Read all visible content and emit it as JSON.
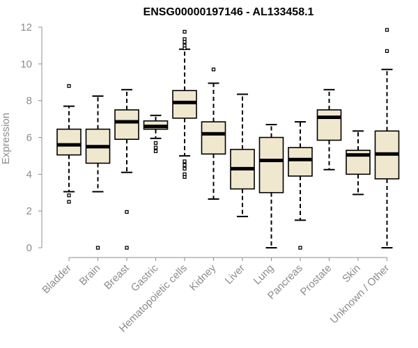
{
  "chart_data": {
    "type": "box",
    "title": "ENSG00000197146 - AL133458.1",
    "xlabel": "",
    "ylabel": "Expression",
    "ylim": [
      0,
      12
    ],
    "yticks": [
      0,
      2,
      4,
      6,
      8,
      10,
      12
    ],
    "box_fill": "#efe8cf",
    "box_stroke": "#000000",
    "categories": [
      "Bladder",
      "Brain",
      "Breast",
      "Gastric",
      "Hematopoietic cells",
      "Kidney",
      "Liver",
      "Lung",
      "Pancreas",
      "Prostate",
      "Skin",
      "Unknown / Other"
    ],
    "boxes": [
      {
        "min": 3.05,
        "q1": 5.05,
        "median": 5.6,
        "q3": 6.45,
        "max": 7.7,
        "outliers": [
          2.85,
          2.5,
          8.8
        ]
      },
      {
        "min": 3.05,
        "q1": 4.6,
        "median": 5.5,
        "q3": 6.45,
        "max": 8.25,
        "outliers": [
          0.0
        ]
      },
      {
        "min": 4.1,
        "q1": 5.9,
        "median": 6.85,
        "q3": 7.5,
        "max": 8.6,
        "outliers": [
          1.95,
          0.0
        ]
      },
      {
        "min": 5.95,
        "q1": 6.45,
        "median": 6.6,
        "q3": 6.9,
        "max": 7.2,
        "outliers": [
          5.7,
          5.45,
          5.25
        ]
      },
      {
        "min": 5.0,
        "q1": 7.05,
        "median": 7.9,
        "q3": 8.55,
        "max": 10.8,
        "outliers": [
          4.7,
          4.5,
          4.3,
          4.0,
          3.85,
          10.85,
          11.0,
          11.2,
          11.35,
          11.75
        ]
      },
      {
        "min": 2.65,
        "q1": 5.1,
        "median": 6.2,
        "q3": 6.85,
        "max": 8.95,
        "outliers": [
          9.7
        ]
      },
      {
        "min": 1.7,
        "q1": 3.2,
        "median": 4.3,
        "q3": 5.35,
        "max": 8.35,
        "outliers": []
      },
      {
        "min": 0.0,
        "q1": 3.0,
        "median": 4.75,
        "q3": 6.0,
        "max": 6.7,
        "outliers": []
      },
      {
        "min": 1.5,
        "q1": 3.9,
        "median": 4.8,
        "q3": 5.45,
        "max": 6.85,
        "outliers": [
          0.0
        ]
      },
      {
        "min": 4.25,
        "q1": 5.85,
        "median": 7.1,
        "q3": 7.5,
        "max": 8.6,
        "outliers": []
      },
      {
        "min": 2.9,
        "q1": 4.0,
        "median": 5.05,
        "q3": 5.3,
        "max": 6.35,
        "outliers": []
      },
      {
        "min": 0.0,
        "q1": 3.75,
        "median": 5.1,
        "q3": 6.35,
        "max": 9.7,
        "outliers": [
          10.7,
          11.85
        ]
      }
    ]
  }
}
